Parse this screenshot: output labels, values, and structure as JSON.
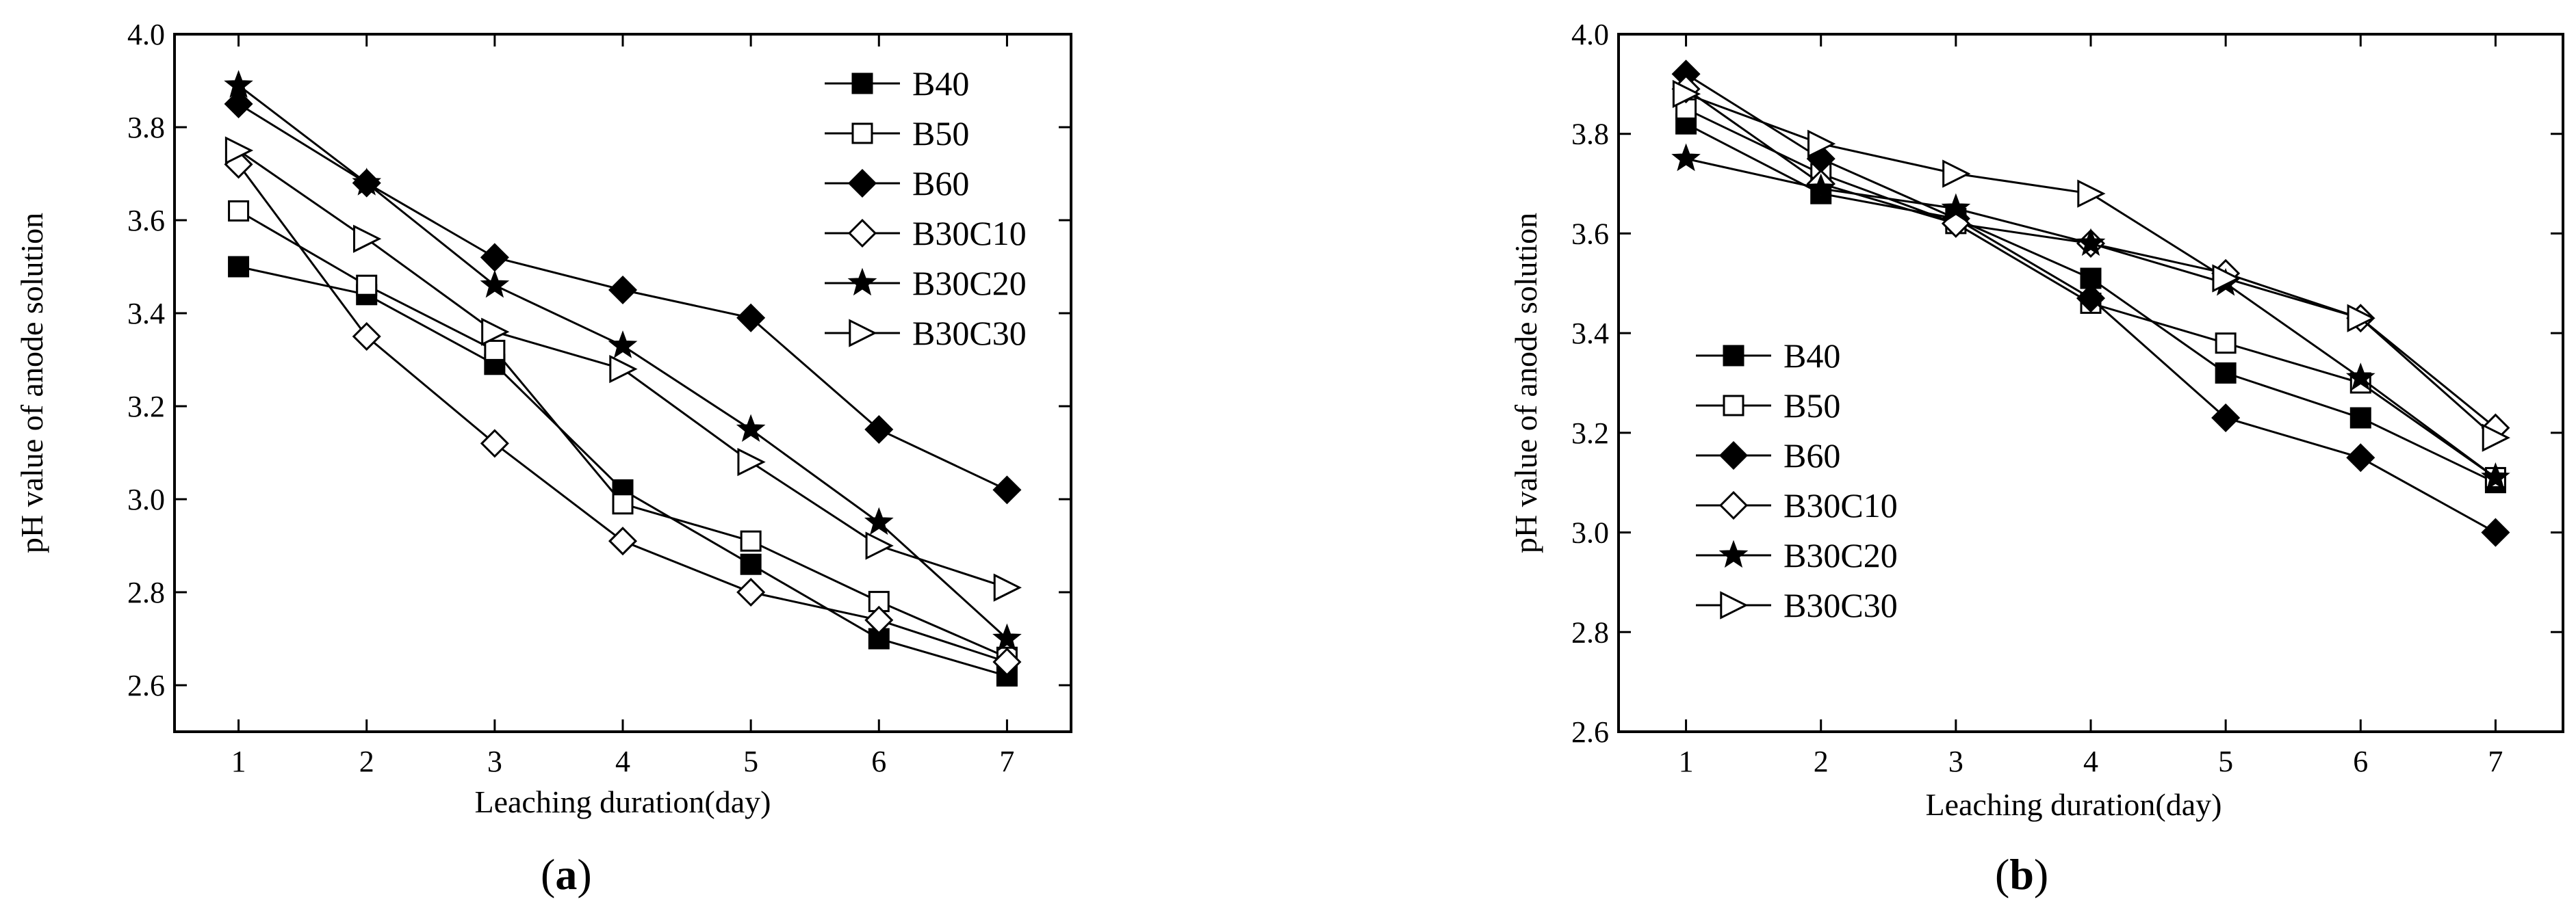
{
  "chart_data": [
    {
      "type": "line",
      "panel_label": "a",
      "xlabel": "Leaching duration(day)",
      "ylabel": "pH value of anode solution",
      "x": [
        1,
        2,
        3,
        4,
        5,
        6,
        7
      ],
      "xlim": [
        0.5,
        7.5
      ],
      "ylim": [
        2.5,
        4.0
      ],
      "x_ticks": [
        "1",
        "2",
        "3",
        "4",
        "5",
        "6",
        "7"
      ],
      "y_ticks": [
        "2.6",
        "2.8",
        "3.0",
        "3.2",
        "3.4",
        "3.6",
        "3.8",
        "4.0"
      ],
      "legend_position": "top-right",
      "series": [
        {
          "name": "B40",
          "marker": "square-filled",
          "values": [
            3.5,
            3.44,
            3.29,
            3.02,
            2.86,
            2.7,
            2.62
          ]
        },
        {
          "name": "B50",
          "marker": "square-open",
          "values": [
            3.62,
            3.46,
            3.32,
            2.99,
            2.91,
            2.78,
            2.66
          ]
        },
        {
          "name": "B60",
          "marker": "diamond-filled",
          "values": [
            3.85,
            3.68,
            3.52,
            3.45,
            3.39,
            3.15,
            3.02
          ]
        },
        {
          "name": "B30C10",
          "marker": "diamond-open",
          "values": [
            3.72,
            3.35,
            3.12,
            2.91,
            2.8,
            2.74,
            2.65
          ]
        },
        {
          "name": "B30C20",
          "marker": "star-filled",
          "values": [
            3.89,
            3.68,
            3.46,
            3.33,
            3.15,
            2.95,
            2.7
          ]
        },
        {
          "name": "B30C30",
          "marker": "triangle-right-open",
          "values": [
            3.75,
            3.56,
            3.36,
            3.28,
            3.08,
            2.9,
            2.81
          ]
        }
      ]
    },
    {
      "type": "line",
      "panel_label": "b",
      "xlabel": "Leaching duration(day)",
      "ylabel": "pH value of anode solution",
      "x": [
        1,
        2,
        3,
        4,
        5,
        6,
        7
      ],
      "xlim": [
        0.5,
        7.5
      ],
      "ylim": [
        2.6,
        4.0
      ],
      "x_ticks": [
        "1",
        "2",
        "3",
        "4",
        "5",
        "6",
        "7"
      ],
      "y_ticks": [
        "2.6",
        "2.8",
        "3.0",
        "3.2",
        "3.4",
        "3.6",
        "3.8",
        "4.0"
      ],
      "legend_position": "center-left",
      "series": [
        {
          "name": "B40",
          "marker": "square-filled",
          "values": [
            3.82,
            3.68,
            3.63,
            3.51,
            3.32,
            3.23,
            3.1
          ]
        },
        {
          "name": "B50",
          "marker": "square-open",
          "values": [
            3.85,
            3.72,
            3.62,
            3.46,
            3.38,
            3.3,
            3.11
          ]
        },
        {
          "name": "B60",
          "marker": "diamond-filled",
          "values": [
            3.92,
            3.75,
            3.63,
            3.47,
            3.23,
            3.15,
            3.0
          ]
        },
        {
          "name": "B30C10",
          "marker": "diamond-open",
          "values": [
            3.89,
            3.7,
            3.62,
            3.58,
            3.52,
            3.43,
            3.21
          ]
        },
        {
          "name": "B30C20",
          "marker": "star-filled",
          "values": [
            3.75,
            3.69,
            3.65,
            3.58,
            3.5,
            3.31,
            3.11
          ]
        },
        {
          "name": "B30C30",
          "marker": "triangle-right-open",
          "values": [
            3.88,
            3.78,
            3.72,
            3.68,
            3.51,
            3.43,
            3.19
          ]
        }
      ]
    }
  ]
}
